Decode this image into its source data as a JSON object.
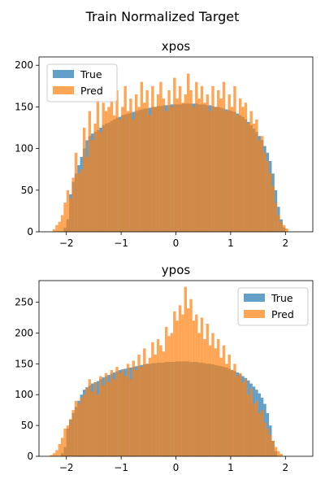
{
  "chart_data": {
    "title": "Train Normalized Target",
    "type": "histogram",
    "legend_placement": [
      "upper left",
      "upper right"
    ],
    "series_colors": {
      "True": "#1f77b4",
      "Pred": "#ff7f0e"
    },
    "alpha": 0.7,
    "subplots": [
      {
        "title": "xpos",
        "xlim": [
          -2.5,
          2.5
        ],
        "ylim": [
          0,
          210
        ],
        "xticks": [
          -2,
          -1,
          0,
          1,
          2
        ],
        "yticks": [
          0,
          50,
          100,
          150,
          200
        ],
        "legend_placement": "upper left",
        "bin_start": -2.25,
        "bin_width": 0.05,
        "series": [
          {
            "name": "True",
            "values": [
              0,
              0,
              0,
              0,
              5,
              15,
              45,
              60,
              70,
              80,
              90,
              100,
              110,
              115,
              118,
              120,
              122,
              125,
              128,
              130,
              131,
              133,
              135,
              137,
              138,
              140,
              141,
              142,
              143,
              144,
              145,
              146,
              147,
              148,
              148,
              149,
              150,
              150,
              151,
              151,
              152,
              152,
              152,
              153,
              153,
              153,
              153,
              154,
              154,
              154,
              154,
              154,
              154,
              153,
              153,
              153,
              152,
              152,
              151,
              150,
              150,
              149,
              148,
              147,
              146,
              145,
              144,
              142,
              140,
              138,
              135,
              132,
              128,
              124,
              120,
              115,
              110,
              103,
              95,
              85,
              70,
              50,
              30,
              15,
              5,
              0,
              0,
              0,
              0,
              0
            ]
          },
          {
            "name": "Pred",
            "values": [
              3,
              8,
              12,
              20,
              35,
              50,
              40,
              65,
              95,
              70,
              75,
              125,
              90,
              145,
              110,
              130,
              160,
              120,
              155,
              145,
              150,
              160,
              140,
              170,
              135,
              150,
              175,
              145,
              160,
              135,
              165,
              150,
              180,
              155,
              170,
              140,
              175,
              150,
              165,
              180,
              160,
              145,
              170,
              150,
              185,
              160,
              175,
              155,
              165,
              190,
              170,
              150,
              180,
              160,
              175,
              155,
              165,
              145,
              175,
              150,
              170,
              160,
              180,
              145,
              165,
              150,
              175,
              140,
              160,
              150,
              155,
              130,
              145,
              130,
              135,
              110,
              115,
              95,
              85,
              70,
              55,
              35,
              20,
              12,
              8,
              4,
              0,
              0,
              0,
              0
            ]
          }
        ]
      },
      {
        "title": "ypos",
        "xlim": [
          -2.5,
          2.5
        ],
        "ylim": [
          0,
          285
        ],
        "xticks": [
          -2,
          -1,
          0,
          1,
          2
        ],
        "yticks": [
          0,
          50,
          100,
          150,
          200,
          250
        ],
        "legend_placement": "upper right",
        "bin_start": -2.3,
        "bin_width": 0.05,
        "series": [
          {
            "name": "True",
            "values": [
              0,
              0,
              0,
              0,
              5,
              15,
              45,
              60,
              70,
              80,
              90,
              100,
              108,
              112,
              115,
              118,
              120,
              122,
              125,
              128,
              130,
              132,
              134,
              136,
              138,
              140,
              141,
              142,
              143,
              144,
              145,
              146,
              147,
              148,
              149,
              150,
              150,
              151,
              151,
              152,
              152,
              152,
              153,
              153,
              153,
              153,
              154,
              154,
              154,
              154,
              154,
              153,
              153,
              153,
              152,
              152,
              151,
              150,
              150,
              149,
              148,
              147,
              146,
              145,
              144,
              142,
              140,
              138,
              136,
              133,
              130,
              127,
              123,
              118,
              113,
              108,
              102,
              95,
              85,
              70,
              50,
              25,
              8,
              0,
              0,
              0,
              0,
              0,
              0,
              0,
              0,
              0
            ]
          },
          {
            "name": "Pred",
            "values": [
              2,
              5,
              10,
              20,
              30,
              45,
              50,
              60,
              75,
              90,
              85,
              95,
              100,
              110,
              125,
              105,
              120,
              100,
              130,
              115,
              135,
              120,
              140,
              125,
              145,
              135,
              140,
              130,
              150,
              125,
              155,
              140,
              165,
              145,
              175,
              150,
              160,
              185,
              165,
              190,
              180,
              170,
              210,
              195,
              200,
              235,
              220,
              245,
              230,
              275,
              240,
              255,
              220,
              230,
              200,
              225,
              190,
              215,
              180,
              200,
              175,
              190,
              160,
              180,
              150,
              165,
              140,
              150,
              130,
              135,
              120,
              125,
              100,
              110,
              85,
              90,
              70,
              75,
              55,
              45,
              35,
              25,
              15,
              8,
              4,
              0,
              0,
              0,
              0,
              0,
              0,
              0
            ]
          }
        ]
      }
    ]
  }
}
